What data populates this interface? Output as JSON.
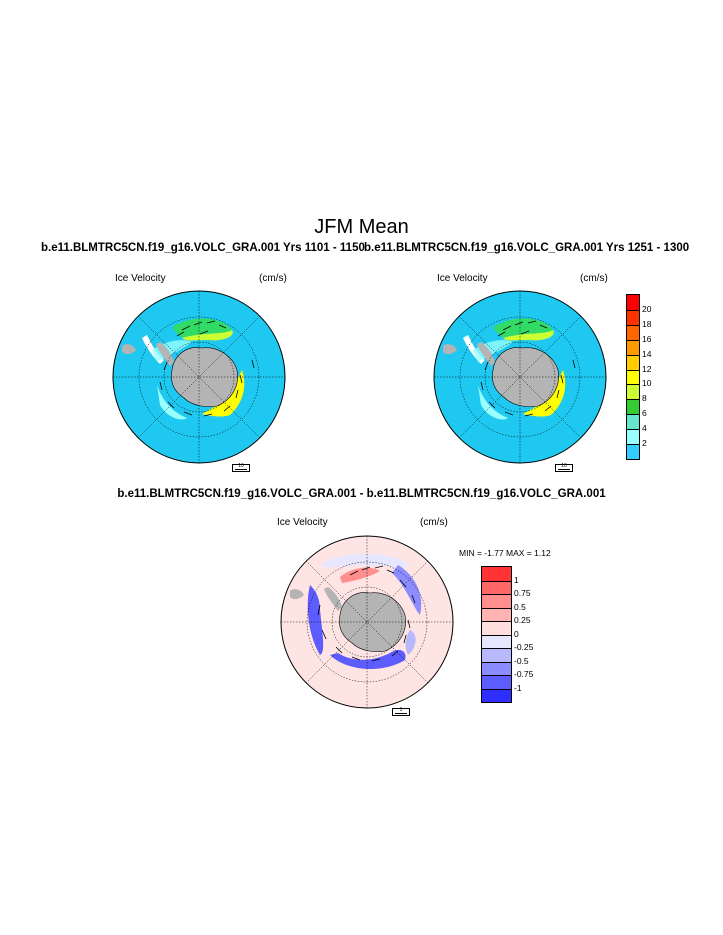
{
  "title": "JFM Mean",
  "runs": {
    "left": "b.e11.BLMTRC5CN.f19_g16.VOLC_GRA.001  Yrs 1101 - 1150",
    "right": "b.e11.BLMTRC5CN.f19_g16.VOLC_GRA.001  Yrs 1251 - 1300",
    "diff": "b.e11.BLMTRC5CN.f19_g16.VOLC_GRA.001 - b.e11.BLMTRC5CN.f19_g16.VOLC_GRA.001"
  },
  "panels": [
    {
      "variable": "Ice Velocity",
      "units": "(cm/s)",
      "ref_vector": "10"
    },
    {
      "variable": "Ice Velocity",
      "units": "(cm/s)",
      "ref_vector": "10"
    },
    {
      "variable": "Ice Velocity",
      "units": "(cm/s)",
      "ref_vector": "1"
    }
  ],
  "diff_stats": {
    "min_label": "MIN =",
    "min": "-1.77",
    "max_label": "MAX =",
    "max": "1.12"
  },
  "colorbar_speed": {
    "ticks": [
      "20",
      "18",
      "16",
      "14",
      "12",
      "10",
      "8",
      "6",
      "4",
      "2"
    ],
    "colors": [
      "#ff0000",
      "#ff3300",
      "#ff6600",
      "#ff9900",
      "#ffcc00",
      "#ffff00",
      "#ccff33",
      "#33cc33",
      "#66e6cc",
      "#99ffff",
      "#33ccff"
    ]
  },
  "colorbar_diff": {
    "ticks": [
      "1",
      "0.75",
      "0.5",
      "0.25",
      "0",
      "-0.25",
      "-0.5",
      "-0.75",
      "-1"
    ],
    "colors": [
      "#ff3333",
      "#ff6666",
      "#ff8f8f",
      "#ffb3b3",
      "#ffdede",
      "#e6e6ff",
      "#b8b8ff",
      "#8c8cff",
      "#5c5cff",
      "#2e2eff"
    ]
  },
  "map_colors": {
    "ocean": "#1ec8f0",
    "land": "#b4b4b4",
    "diff_background": "#ffe4e4"
  }
}
